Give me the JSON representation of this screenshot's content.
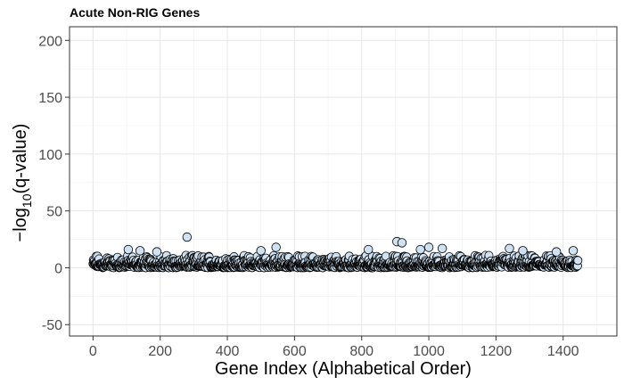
{
  "chart_data": {
    "type": "scatter",
    "title": "Acute Non-RIG Genes",
    "xlabel": "Gene Index (Alphabetical Order)",
    "ylabel_prefix": "−log",
    "ylabel_sub": "10",
    "ylabel_suffix": "(q-value)",
    "xlim": [
      -70,
      1560
    ],
    "ylim": [
      -60,
      212
    ],
    "xticks": [
      0,
      200,
      400,
      600,
      800,
      1000,
      1200,
      1400
    ],
    "yticks": [
      -50,
      0,
      50,
      100,
      150,
      200
    ],
    "n_genes": 1445,
    "grid": true,
    "point_color": "#cfe2f3",
    "highlight_points": [
      {
        "x": 280,
        "y": 27
      },
      {
        "x": 905,
        "y": 23
      },
      {
        "x": 920,
        "y": 22
      },
      {
        "x": 545,
        "y": 18
      },
      {
        "x": 1000,
        "y": 18
      },
      {
        "x": 1040,
        "y": 17
      },
      {
        "x": 1240,
        "y": 17
      },
      {
        "x": 105,
        "y": 16
      },
      {
        "x": 820,
        "y": 16
      },
      {
        "x": 1430,
        "y": 15
      },
      {
        "x": 975,
        "y": 16
      },
      {
        "x": 140,
        "y": 15
      },
      {
        "x": 500,
        "y": 15
      },
      {
        "x": 1280,
        "y": 15
      },
      {
        "x": 1380,
        "y": 14
      },
      {
        "x": 190,
        "y": 14
      }
    ]
  }
}
